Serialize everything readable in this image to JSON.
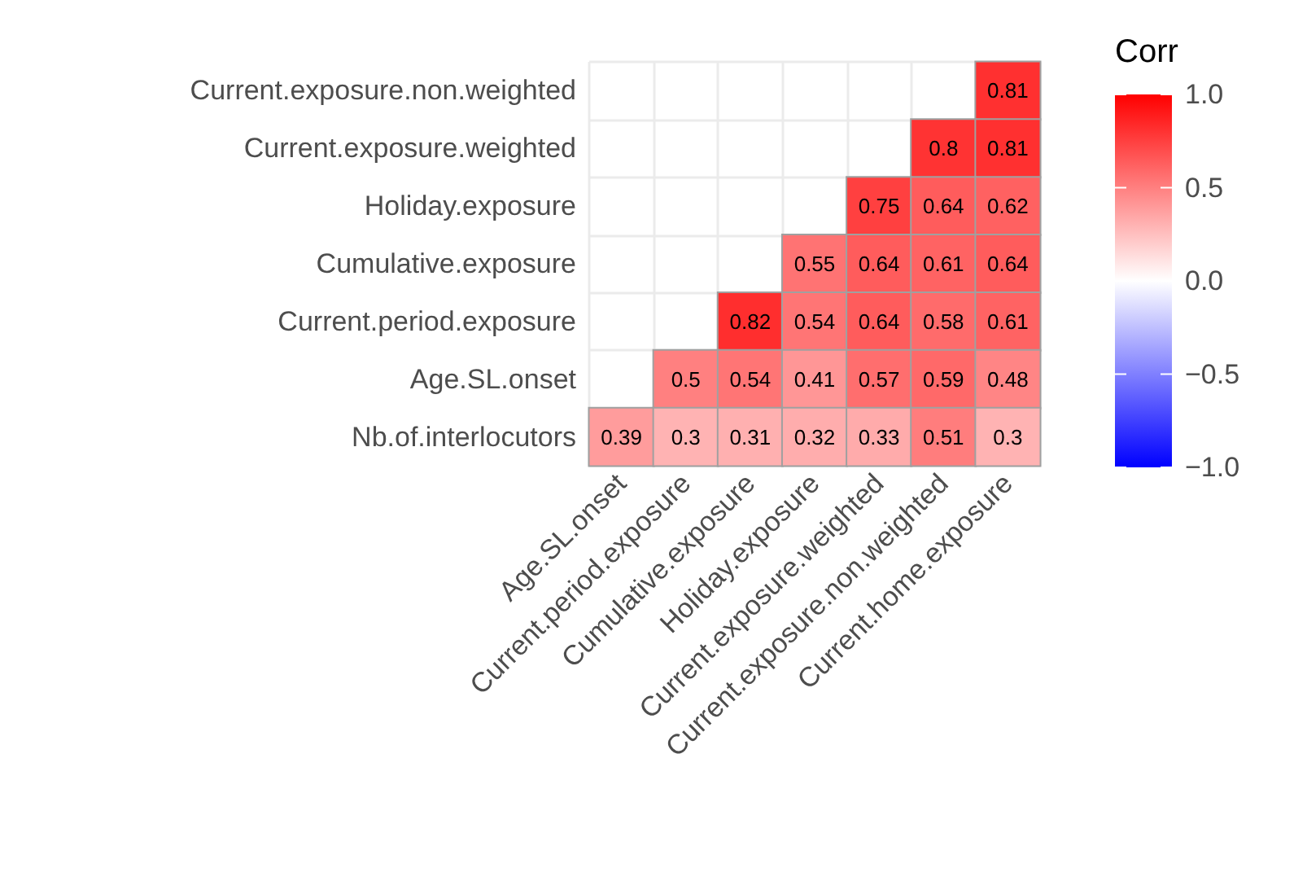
{
  "chart_data": {
    "type": "heatmap",
    "clabel": "Corr",
    "categories": [
      "Age.SL.onset",
      "Current.period.exposure",
      "Cumulative.exposure",
      "Holiday.exposure",
      "Current.exposure.weighted",
      "Current.exposure.non.weighted",
      "Current.home.exposure"
    ],
    "y_categories": [
      "Current.exposure.non.weighted",
      "Current.exposure.weighted",
      "Holiday.exposure",
      "Cumulative.exposure",
      "Current.period.exposure",
      "Age.SL.onset",
      "Nb.of.interlocutors"
    ],
    "cells": [
      [
        null,
        null,
        null,
        null,
        null,
        null,
        0.81
      ],
      [
        null,
        null,
        null,
        null,
        null,
        0.8,
        0.81
      ],
      [
        null,
        null,
        null,
        null,
        0.75,
        0.64,
        0.62
      ],
      [
        null,
        null,
        null,
        0.55,
        0.64,
        0.61,
        0.64
      ],
      [
        null,
        null,
        0.82,
        0.54,
        0.64,
        0.58,
        0.61
      ],
      [
        null,
        0.5,
        0.54,
        0.41,
        0.57,
        0.59,
        0.48
      ],
      [
        0.39,
        0.3,
        0.31,
        0.32,
        0.33,
        0.51,
        0.3
      ]
    ],
    "clim": [
      -1,
      1
    ],
    "cticks": [
      {
        "value": -1,
        "label": "−1.0"
      },
      {
        "value": -0.5,
        "label": "−0.5"
      },
      {
        "value": 0,
        "label": "0.0"
      },
      {
        "value": 0.5,
        "label": "0.5"
      },
      {
        "value": 1,
        "label": "1.0"
      }
    ],
    "data_labels": true,
    "grid": true
  }
}
